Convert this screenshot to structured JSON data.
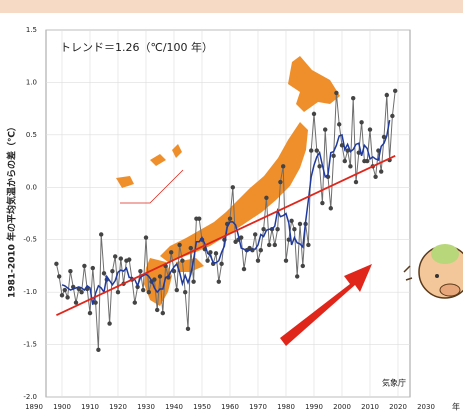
{
  "chart_data": {
    "type": "line",
    "annotations": [
      "トレンド＝1.26（℃/100 年）",
      "気象庁"
    ],
    "y_label": "1981-2010 年の平均気温からの差（℃）",
    "x_unit": "年",
    "x": [
      1898,
      1899,
      1900,
      1901,
      1902,
      1903,
      1904,
      1905,
      1906,
      1907,
      1908,
      1909,
      1910,
      1911,
      1912,
      1913,
      1914,
      1915,
      1916,
      1917,
      1918,
      1919,
      1920,
      1921,
      1922,
      1923,
      1924,
      1925,
      1926,
      1927,
      1928,
      1929,
      1930,
      1931,
      1932,
      1933,
      1934,
      1935,
      1936,
      1937,
      1938,
      1939,
      1940,
      1941,
      1942,
      1943,
      1944,
      1945,
      1946,
      1947,
      1948,
      1949,
      1950,
      1951,
      1952,
      1953,
      1954,
      1955,
      1956,
      1957,
      1958,
      1959,
      1960,
      1961,
      1962,
      1963,
      1964,
      1965,
      1966,
      1967,
      1968,
      1969,
      1970,
      1971,
      1972,
      1973,
      1974,
      1975,
      1976,
      1977,
      1978,
      1979,
      1980,
      1981,
      1982,
      1983,
      1984,
      1985,
      1986,
      1987,
      1988,
      1989,
      1990,
      1991,
      1992,
      1993,
      1994,
      1995,
      1996,
      1997,
      1998,
      1999,
      2000,
      2001,
      2002,
      2003,
      2004,
      2005,
      2006,
      2007,
      2008,
      2009,
      2010,
      2011,
      2012,
      2013,
      2014,
      2015,
      2016,
      2017,
      2018,
      2019
    ],
    "series": [
      {
        "color": "#6e6e6e",
        "values": [
          -0.73,
          -0.85,
          -1.03,
          -0.98,
          -1.05,
          -0.8,
          -0.95,
          -1.1,
          -0.97,
          -1.0,
          -0.75,
          -0.97,
          -1.2,
          -0.77,
          -1.1,
          -1.55,
          -0.45,
          -0.82,
          -0.88,
          -1.3,
          -0.8,
          -0.66,
          -1.0,
          -0.68,
          -0.92,
          -0.7,
          -0.69,
          -0.88,
          -1.1,
          -0.95,
          -0.8,
          -0.98,
          -0.48,
          -1.0,
          -0.9,
          -0.88,
          -1.17,
          -0.85,
          -1.2,
          -0.75,
          -0.86,
          -0.62,
          -0.8,
          -0.98,
          -0.55,
          -0.7,
          -1.0,
          -1.35,
          -0.58,
          -0.9,
          -0.3,
          -0.3,
          -0.5,
          -0.59,
          -0.7,
          -0.62,
          -0.73,
          -0.63,
          -0.9,
          -0.73,
          -0.5,
          -0.35,
          -0.3,
          0.0,
          -0.52,
          -0.5,
          -0.48,
          -0.78,
          -0.6,
          -0.58,
          -0.6,
          -0.45,
          -0.7,
          -0.6,
          -0.4,
          -0.1,
          -0.55,
          -0.4,
          -0.55,
          -0.4,
          0.05,
          0.2,
          -0.7,
          -0.5,
          -0.32,
          -0.4,
          -0.85,
          -0.35,
          -0.75,
          -0.35,
          -0.55,
          0.35,
          0.7,
          0.35,
          0.2,
          -0.15,
          0.55,
          0.1,
          -0.2,
          0.3,
          0.9,
          0.6,
          0.4,
          0.25,
          0.35,
          0.2,
          0.85,
          0.05,
          0.33,
          0.62,
          0.25,
          0.25,
          0.55,
          0.2,
          0.1,
          0.35,
          0.15,
          0.48,
          0.88,
          0.26,
          0.68,
          0.92
        ]
      },
      {
        "color": "#1f3a9e",
        "values": [
          null,
          null,
          -0.93,
          -0.94,
          -0.96,
          -0.98,
          -0.97,
          -0.96,
          -0.95,
          -0.96,
          -0.98,
          -0.94,
          -0.96,
          -1.12,
          -1.01,
          -0.94,
          -0.96,
          -1.0,
          -0.85,
          -0.89,
          -0.93,
          -0.89,
          -0.81,
          -0.79,
          -0.8,
          -0.77,
          -0.86,
          -0.86,
          -0.88,
          -0.94,
          -0.86,
          -0.84,
          -0.83,
          -0.85,
          -0.89,
          -0.96,
          -1.0,
          -0.97,
          -0.97,
          -0.86,
          -0.85,
          -0.8,
          -0.76,
          -0.73,
          -0.81,
          -0.92,
          -0.84,
          -0.91,
          -0.83,
          -0.69,
          -0.52,
          -0.52,
          -0.48,
          -0.54,
          -0.63,
          -0.65,
          -0.72,
          -0.72,
          -0.7,
          -0.62,
          -0.56,
          -0.38,
          -0.33,
          -0.33,
          -0.36,
          -0.46,
          -0.58,
          -0.59,
          -0.61,
          -0.6,
          -0.59,
          -0.59,
          -0.55,
          -0.45,
          -0.47,
          -0.41,
          -0.4,
          -0.4,
          -0.37,
          -0.22,
          -0.28,
          -0.27,
          -0.25,
          -0.34,
          -0.55,
          -0.48,
          -0.53,
          -0.54,
          -0.57,
          -0.33,
          -0.12,
          0.1,
          0.21,
          0.29,
          0.33,
          0.21,
          0.1,
          0.12,
          0.33,
          0.34,
          0.4,
          0.49,
          0.5,
          0.36,
          0.41,
          0.34,
          0.36,
          0.41,
          0.42,
          0.3,
          0.4,
          0.37,
          0.27,
          0.29,
          0.27,
          0.26,
          0.39,
          0.42,
          0.49,
          0.64,
          null,
          null
        ]
      }
    ],
    "trend": {
      "color": "#e0261b",
      "x": [
        1898,
        2019
      ],
      "values": [
        -1.22,
        0.3
      ]
    },
    "xlim": [
      1890,
      2030
    ],
    "xticks": [
      1890,
      1900,
      1910,
      1920,
      1930,
      1940,
      1950,
      1960,
      1970,
      1980,
      1990,
      2000,
      2010,
      2020,
      2030
    ],
    "ylim": [
      -2,
      1.5
    ],
    "yticks": [
      {
        "value": -2,
        "label": "-2.0"
      },
      -1.5,
      {
        "value": -1,
        "label": "-1.0"
      },
      -0.5,
      {
        "value": 0,
        "label": "0.0"
      },
      0.5,
      {
        "value": 1,
        "label": "1.0"
      },
      1.5
    ],
    "grid": true
  }
}
